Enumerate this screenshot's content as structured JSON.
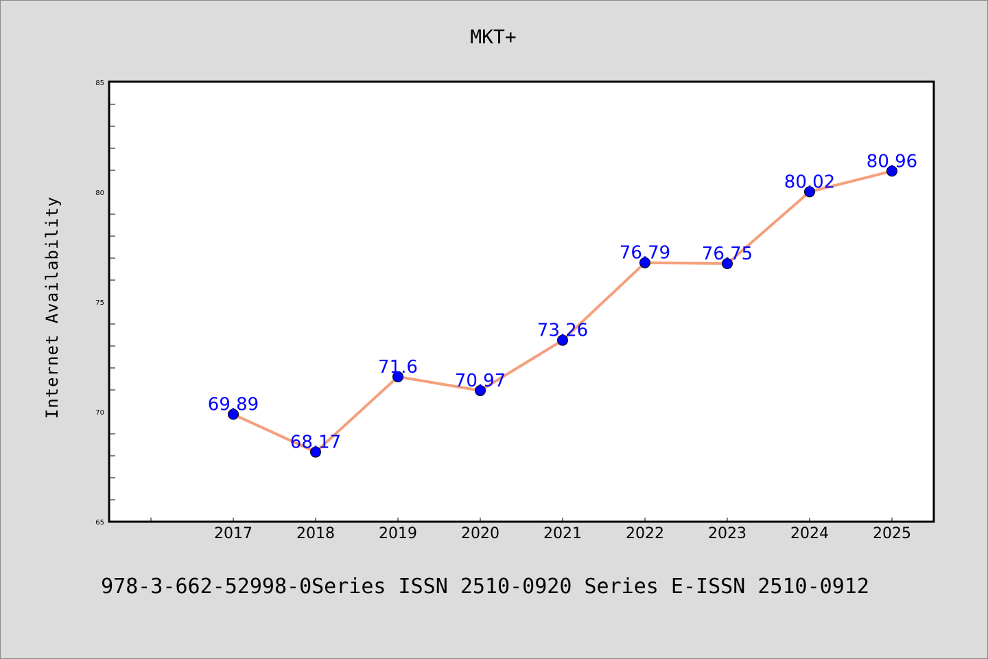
{
  "chart_data": {
    "type": "line",
    "title": "MKT+",
    "xlabel": "",
    "ylabel": "Internet Availability",
    "x": [
      "2017",
      "2018",
      "2019",
      "2020",
      "2021",
      "2022",
      "2023",
      "2024",
      "2025"
    ],
    "series": [
      {
        "values": [
          69.89,
          68.17,
          71.6,
          70.97,
          73.26,
          76.79,
          76.75,
          80.02,
          80.96
        ],
        "labels": [
          "69.89",
          "68.17",
          "71.6",
          "70.97",
          "73.26",
          "76.79",
          "76.75",
          "80.02",
          "80.96"
        ],
        "line_color": "#f4a07c",
        "marker_color": "#0000ff",
        "label_color": "#0000ff"
      }
    ],
    "ylim": [
      65,
      85
    ],
    "yticks": [
      "65",
      "70",
      "75",
      "80",
      "85"
    ],
    "grid": false,
    "legend": "none"
  },
  "footer": "978-3-662-52998-0Series ISSN 2510-0920 Series E-ISSN 2510-0912",
  "colors": {
    "background": "#dcdcdc",
    "plot_background": "#ffffff",
    "axis": "#000000"
  }
}
